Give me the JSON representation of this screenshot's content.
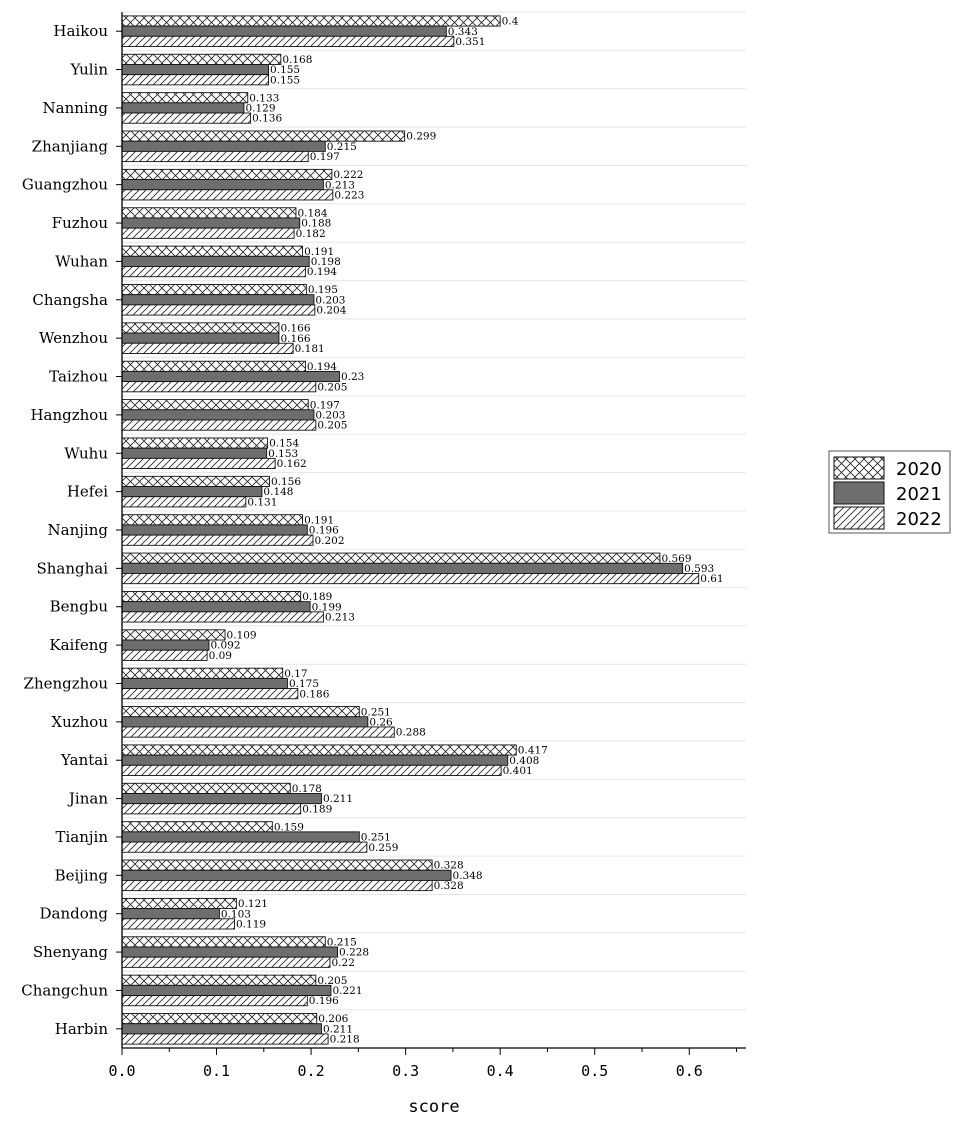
{
  "chart_data": {
    "type": "bar",
    "orientation": "horizontal",
    "categories": [
      "Haikou",
      "Yulin",
      "Nanning",
      "Zhanjiang",
      "Guangzhou",
      "Fuzhou",
      "Wuhan",
      "Changsha",
      "Wenzhou",
      "Taizhou",
      "Hangzhou",
      "Wuhu",
      "Hefei",
      "Nanjing",
      "Shanghai",
      "Bengbu",
      "Kaifeng",
      "Zhengzhou",
      "Xuzhou",
      "Yantai",
      "Jinan",
      "Tianjin",
      "Beijing",
      "Dandong",
      "Shenyang",
      "Changchun",
      "Harbin"
    ],
    "series": [
      {
        "name": "2020",
        "pattern": "crosshatch",
        "fill": "#ffffff",
        "values": [
          0.4,
          0.168,
          0.133,
          0.299,
          0.222,
          0.184,
          0.191,
          0.195,
          0.166,
          0.194,
          0.197,
          0.154,
          0.156,
          0.191,
          0.569,
          0.189,
          0.109,
          0.17,
          0.251,
          0.417,
          0.178,
          0.159,
          0.328,
          0.121,
          0.215,
          0.205,
          0.206
        ],
        "labels": [
          "0.4",
          "0.168",
          "0.133",
          "0.299",
          "0.222",
          "0.184",
          "0.191",
          "0.195",
          "0.166",
          "0.194",
          "0.197",
          "0.154",
          "0.156",
          "0.191",
          "0.569",
          "0.189",
          "0.109",
          "0.17",
          "0.251",
          "0.417",
          "0.178",
          "0.159",
          "0.328",
          "0.121",
          "0.215",
          "0.205",
          "0.206"
        ]
      },
      {
        "name": "2021",
        "pattern": "solid",
        "fill": "#6e6e6e",
        "values": [
          0.343,
          0.155,
          0.129,
          0.215,
          0.213,
          0.188,
          0.198,
          0.203,
          0.166,
          0.23,
          0.203,
          0.153,
          0.148,
          0.196,
          0.593,
          0.199,
          0.092,
          0.175,
          0.26,
          0.408,
          0.211,
          0.251,
          0.348,
          0.103,
          0.228,
          0.221,
          0.211
        ],
        "labels": [
          "0.343",
          "0.155",
          "0.129",
          "0.215",
          "0.213",
          "0.188",
          "0.198",
          "0.203",
          "0.166",
          "0.23",
          "0.203",
          "0.153",
          "0.148",
          "0.196",
          "0.593",
          "0.199",
          "0.092",
          "0.175",
          "0.26",
          "0.408",
          "0.211",
          "0.251",
          "0.348",
          "0.103",
          "0.228",
          "0.221",
          "0.211"
        ]
      },
      {
        "name": "2022",
        "pattern": "diagonal",
        "fill": "#ffffff",
        "values": [
          0.351,
          0.155,
          0.136,
          0.197,
          0.223,
          0.182,
          0.194,
          0.204,
          0.181,
          0.205,
          0.205,
          0.162,
          0.131,
          0.202,
          0.61,
          0.213,
          0.09,
          0.186,
          0.288,
          0.401,
          0.189,
          0.259,
          0.328,
          0.119,
          0.22,
          0.196,
          0.218
        ],
        "labels": [
          "0.351",
          "0.155",
          "0.136",
          "0.197",
          "0.223",
          "0.182",
          "0.194",
          "0.204",
          "0.181",
          "0.205",
          "0.205",
          "0.162",
          "0.131",
          "0.202",
          "0.61",
          "0.213",
          "0.09",
          "0.186",
          "0.288",
          "0.401",
          "0.189",
          "0.259",
          "0.328",
          "0.119",
          "0.22",
          "0.196",
          "0.218"
        ]
      }
    ],
    "xlabel": "score",
    "ylabel": "",
    "title": "",
    "xlim": [
      0,
      0.66
    ],
    "xticks": [
      0.0,
      0.1,
      0.2,
      0.3,
      0.4,
      0.5,
      0.6
    ],
    "xtick_labels": [
      "0.0",
      "0.1",
      "0.2",
      "0.3",
      "0.4",
      "0.5",
      "0.6"
    ],
    "grid": true,
    "legend": "right"
  }
}
